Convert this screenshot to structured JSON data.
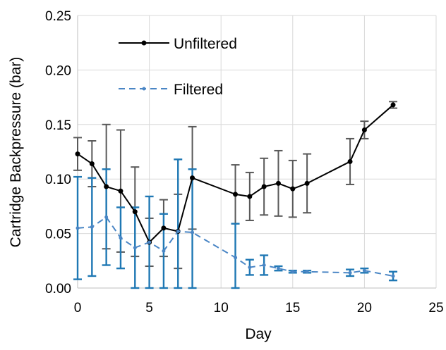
{
  "chart_data": {
    "type": "line",
    "xlabel": "Day",
    "ylabel": "Cartridge Backpressure (bar)",
    "xlim": [
      0,
      25
    ],
    "ylim": [
      0,
      0.25
    ],
    "x_ticks": [
      "0",
      "5",
      "10",
      "15",
      "20",
      "25"
    ],
    "y_ticks": [
      "0.00",
      "0.05",
      "0.10",
      "0.15",
      "0.20",
      "0.25"
    ],
    "grid": true,
    "legend_position": "top-left",
    "series": [
      {
        "name": "Unfiltered",
        "color": "#000000",
        "error_color": "#595959",
        "dash": "solid",
        "x": [
          0,
          1,
          2,
          3,
          4,
          5,
          6,
          7,
          8,
          11,
          12,
          13,
          14,
          15,
          16,
          19,
          20,
          22
        ],
        "y": [
          0.123,
          0.114,
          0.093,
          0.089,
          0.07,
          0.042,
          0.055,
          0.052,
          0.101,
          0.086,
          0.084,
          0.093,
          0.096,
          0.091,
          0.096,
          0.116,
          0.145,
          0.168
        ],
        "err": [
          0.015,
          0.021,
          0.057,
          0.056,
          0.041,
          0.022,
          0.026,
          0.034,
          0.047,
          0.027,
          0.022,
          0.026,
          0.03,
          0.026,
          0.027,
          0.021,
          0.008,
          0.003
        ]
      },
      {
        "name": "Filtered",
        "color": "#4a86c5",
        "error_color": "#1f78b4",
        "dash": "dashed",
        "x": [
          0,
          1,
          2,
          3,
          4,
          5,
          6,
          7,
          8,
          11,
          12,
          13,
          14,
          15,
          16,
          19,
          20,
          22
        ],
        "y": [
          0.055,
          0.056,
          0.065,
          0.046,
          0.037,
          0.042,
          0.034,
          0.052,
          0.051,
          0.028,
          0.019,
          0.021,
          0.018,
          0.015,
          0.015,
          0.014,
          0.016,
          0.011
        ],
        "err": [
          0.047,
          0.045,
          0.044,
          0.028,
          0.037,
          0.042,
          0.034,
          0.066,
          0.058,
          0.031,
          0.007,
          0.009,
          0.002,
          0.001,
          0.001,
          0.003,
          0.002,
          0.004
        ]
      }
    ]
  }
}
